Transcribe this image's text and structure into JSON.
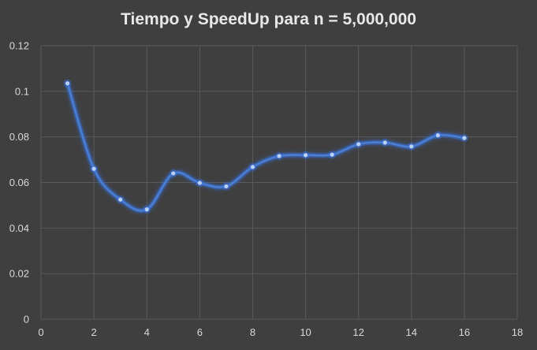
{
  "chart_data": {
    "type": "scatter",
    "title": "Tiempo  y SpeedUp para n = 5,000,000",
    "xlabel": "",
    "ylabel": "",
    "xlim": [
      0,
      18
    ],
    "ylim": [
      0,
      0.12
    ],
    "x_ticks": [
      0,
      2,
      4,
      6,
      8,
      10,
      12,
      14,
      16,
      18
    ],
    "y_ticks": [
      0,
      0.02,
      0.04,
      0.06,
      0.08,
      0.1,
      0.12
    ],
    "x_tick_labels": [
      "0",
      "2",
      "4",
      "6",
      "8",
      "10",
      "12",
      "14",
      "16",
      "18"
    ],
    "y_tick_labels": [
      "0",
      "0.02",
      "0.04",
      "0.06",
      "0.08",
      "0.1",
      "0.12"
    ],
    "grid": true,
    "smooth_line": true,
    "series": [
      {
        "x": [
          1,
          2,
          3,
          4,
          5,
          6,
          7,
          8,
          9,
          10,
          11,
          12,
          13,
          14,
          15,
          16
        ],
        "y": [
          0.1035,
          0.066,
          0.0525,
          0.0482,
          0.064,
          0.0598,
          0.0583,
          0.0668,
          0.0716,
          0.072,
          0.0722,
          0.0768,
          0.0775,
          0.0758,
          0.0807,
          0.0795
        ]
      }
    ],
    "colors": {
      "line": "#4a7fd4",
      "marker": "#b9d0f5",
      "glow": "#3a6fd8",
      "grid": "#5a5a5a",
      "text": "#d9d9d9",
      "background": "#3f3f3f"
    }
  }
}
